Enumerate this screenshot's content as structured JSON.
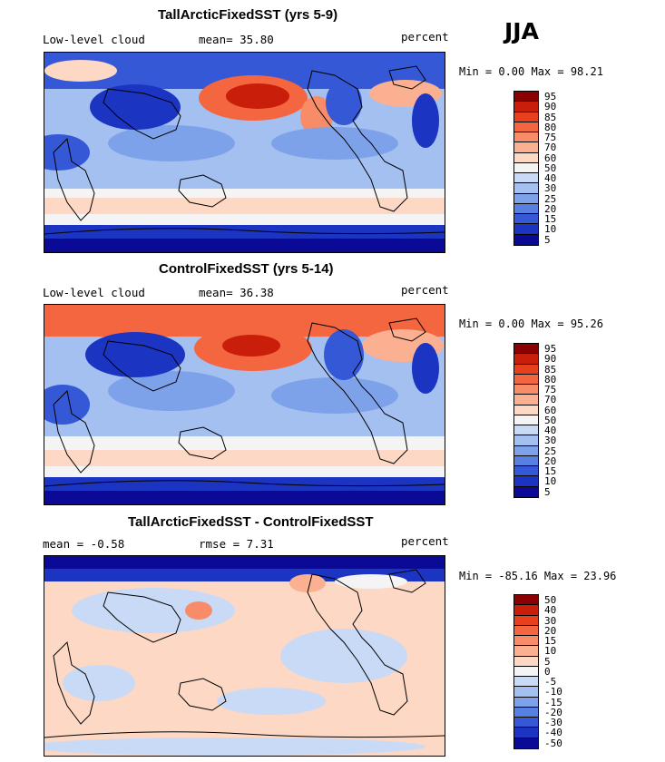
{
  "season": "JJA",
  "panels": [
    {
      "title": "TallArcticFixedSST (yrs 5-9)",
      "left_label": "Low-level cloud",
      "mid_label": "mean=  35.80",
      "units": "percent",
      "minmax": "Min =   0.00 Max =  98.21",
      "colorbar_levels": [
        "95",
        "90",
        "85",
        "80",
        "75",
        "70",
        "60",
        "50",
        "40",
        "30",
        "25",
        "20",
        "15",
        "10",
        "5"
      ],
      "colorbar_colors": [
        "#8b0000",
        "#c81e0a",
        "#e8401c",
        "#f4663f",
        "#f88c68",
        "#fbb092",
        "#fdd8c4",
        "#f4f4f4",
        "#c9daf6",
        "#a4c0f0",
        "#7ea2ea",
        "#5680e2",
        "#3558d6",
        "#1b34c2",
        "#0a0a96"
      ]
    },
    {
      "title": "ControlFixedSST (yrs 5-14)",
      "left_label": "Low-level cloud",
      "mid_label": "mean=  36.38",
      "units": "percent",
      "minmax": "Min =   0.00 Max =  95.26",
      "colorbar_levels": [
        "95",
        "90",
        "85",
        "80",
        "75",
        "70",
        "60",
        "50",
        "40",
        "30",
        "25",
        "20",
        "15",
        "10",
        "5"
      ],
      "colorbar_colors": [
        "#8b0000",
        "#c81e0a",
        "#e8401c",
        "#f4663f",
        "#f88c68",
        "#fbb092",
        "#fdd8c4",
        "#f4f4f4",
        "#c9daf6",
        "#a4c0f0",
        "#7ea2ea",
        "#5680e2",
        "#3558d6",
        "#1b34c2",
        "#0a0a96"
      ]
    },
    {
      "title": "TallArcticFixedSST - ControlFixedSST",
      "left_label": "mean =  -0.58",
      "mid_label": "rmse =   7.31",
      "units": "percent",
      "minmax": "Min = -85.16 Max =  23.96",
      "colorbar_levels": [
        "50",
        "40",
        "30",
        "20",
        "15",
        "10",
        "5",
        "0",
        "-5",
        "-10",
        "-15",
        "-20",
        "-30",
        "-40",
        "-50"
      ],
      "colorbar_colors": [
        "#8b0000",
        "#c81e0a",
        "#e8401c",
        "#f4663f",
        "#f88c68",
        "#fbb092",
        "#fdd8c4",
        "#f4f4f4",
        "#c9daf6",
        "#a4c0f0",
        "#7ea2ea",
        "#5680e2",
        "#3558d6",
        "#1b34c2",
        "#0a0a96"
      ]
    }
  ]
}
